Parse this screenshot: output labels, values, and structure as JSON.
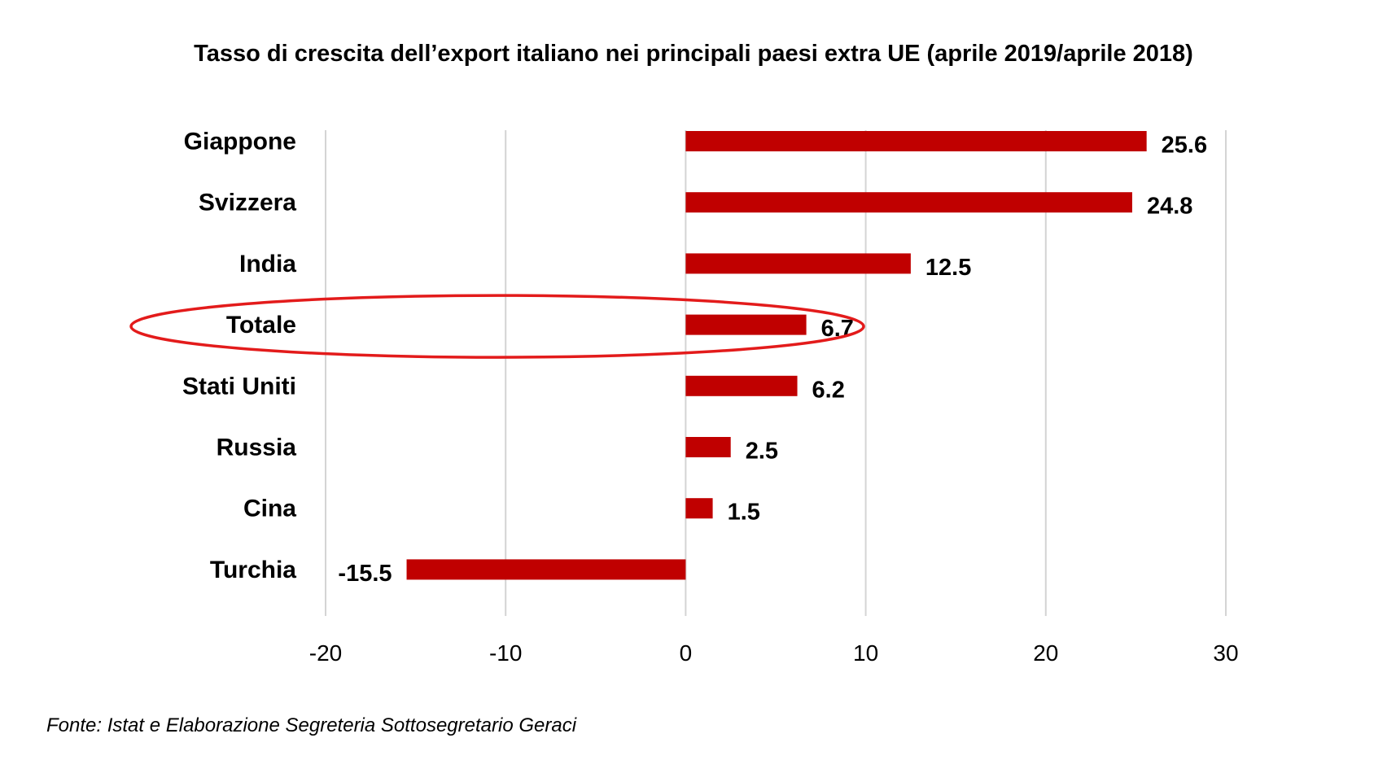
{
  "chart_data": {
    "type": "bar",
    "orientation": "horizontal",
    "title": "Tasso di crescita dell’export italiano nei principali paesi extra UE (aprile 2019/aprile 2018)",
    "categories": [
      "Giappone",
      "Svizzera",
      "India",
      "Totale",
      "Stati Uniti",
      "Russia",
      "Cina",
      "Turchia"
    ],
    "values": [
      25.6,
      24.8,
      12.5,
      6.7,
      6.2,
      2.5,
      1.5,
      -15.5
    ],
    "value_labels": [
      "25.6",
      "24.8",
      "12.5",
      "6.7",
      "6.2",
      "2.5",
      "1.5",
      "-15.5"
    ],
    "xlim": [
      -20,
      30
    ],
    "x_ticks": [
      -20,
      -10,
      0,
      10,
      20,
      30
    ],
    "x_tick_labels": [
      "-20",
      "-10",
      "0",
      "10",
      "20",
      "30"
    ],
    "grid": "vertical",
    "highlighted_category": "Totale",
    "bar_color": "#c00000",
    "highlight_color": "#e31b1b",
    "source": "Fonte: Istat e Elaborazione Segreteria Sottosegretario Geraci"
  }
}
